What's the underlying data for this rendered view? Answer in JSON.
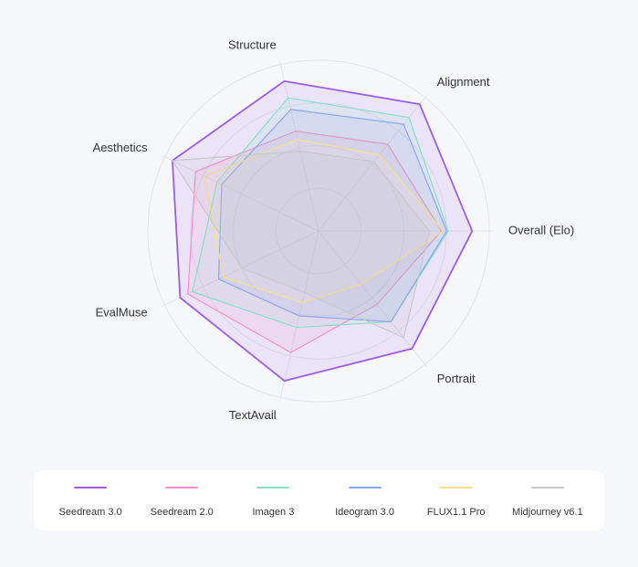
{
  "chart_data": {
    "type": "radar",
    "axes": [
      "Overall (Elo)",
      "Portrait",
      "TextAvail",
      "EvalMuse",
      "Aesthetics",
      "Structure",
      "Alignment"
    ],
    "range": [
      0,
      1
    ],
    "grid": true,
    "legend_position": "bottom",
    "series": [
      {
        "name": "Seedream 3.0",
        "color": "#9b5de5",
        "fill": "#9b5de5",
        "values": [
          0.9,
          0.88,
          0.9,
          0.9,
          0.95,
          0.9,
          0.95
        ]
      },
      {
        "name": "Seedream 2.0",
        "color": "#f78fc8",
        "fill": "#f78fc8",
        "values": [
          0.72,
          0.55,
          0.73,
          0.85,
          0.8,
          0.6,
          0.65
        ]
      },
      {
        "name": "Imagen 3",
        "color": "#86e0c8",
        "fill": "#86e0c8",
        "values": [
          0.76,
          0.68,
          0.58,
          0.82,
          0.66,
          0.8,
          0.85
        ]
      },
      {
        "name": "Ideogram 3.0",
        "color": "#8aa6f0",
        "fill": "#8aa6f0",
        "values": [
          0.75,
          0.68,
          0.51,
          0.65,
          0.63,
          0.73,
          0.8
        ]
      },
      {
        "name": "FLUX1.1 Pro",
        "color": "#f5e08c",
        "fill": "#fbefc8",
        "values": [
          0.73,
          0.4,
          0.43,
          0.62,
          0.74,
          0.55,
          0.57
        ]
      },
      {
        "name": "Midjourney v6.1",
        "color": "#c8c8cc",
        "fill": "#b8b8be",
        "values": [
          0.65,
          0.8,
          0.37,
          0.5,
          0.95,
          0.48,
          0.52
        ]
      }
    ]
  }
}
